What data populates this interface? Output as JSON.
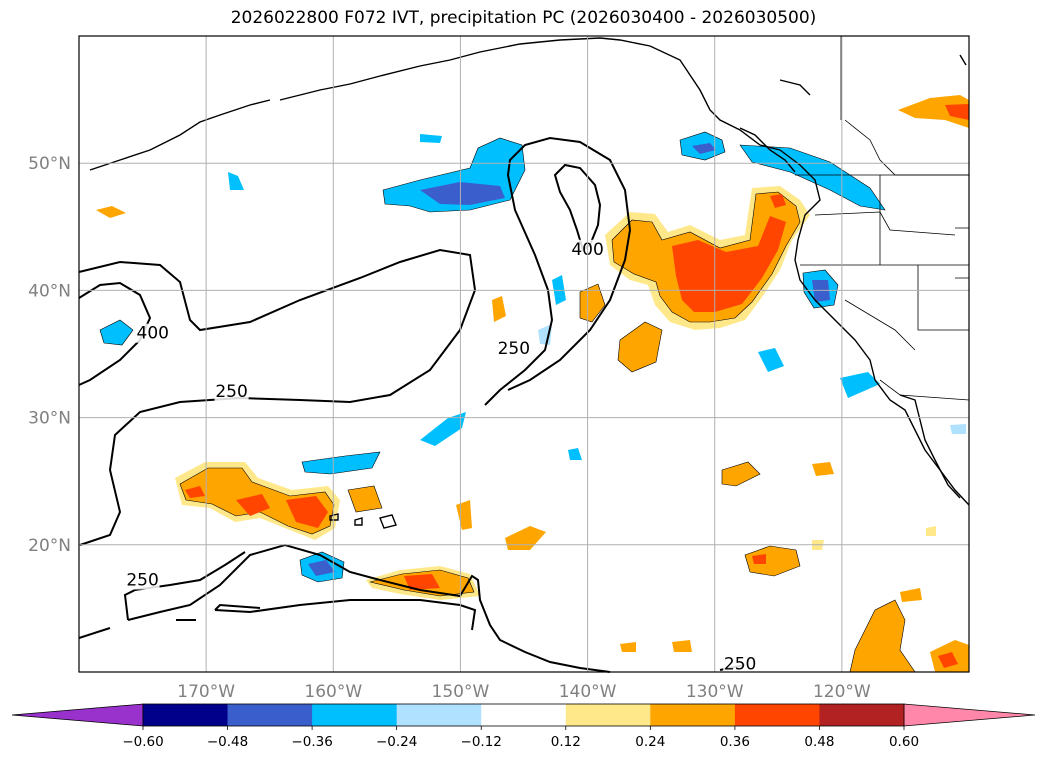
{
  "title": "2026022800 F072 IVT, precipitation PC (2026030400 - 2026030500)",
  "map": {
    "projection": "plate-carree",
    "lon_range": [
      -180,
      -110
    ],
    "lat_range": [
      10,
      60
    ],
    "grid": true,
    "lon_ticks": [
      {
        "lon": -170,
        "label": "170°W"
      },
      {
        "lon": -160,
        "label": "160°W"
      },
      {
        "lon": -150,
        "label": "150°W"
      },
      {
        "lon": -140,
        "label": "140°W"
      },
      {
        "lon": -130,
        "label": "130°W"
      },
      {
        "lon": -120,
        "label": "120°W"
      }
    ],
    "lat_ticks": [
      {
        "lat": 20,
        "label": "20°N"
      },
      {
        "lat": 30,
        "label": "30°N"
      },
      {
        "lat": 40,
        "label": "40°N"
      },
      {
        "lat": 50,
        "label": "50°N"
      }
    ],
    "ivt_contour_labels": [
      {
        "text": "400",
        "lon": -174.2,
        "lat": 36.2
      },
      {
        "text": "250",
        "lon": -168.0,
        "lat": 31.6
      },
      {
        "text": "250",
        "lon": -175.0,
        "lat": 16.8
      },
      {
        "text": "400",
        "lon": -140.0,
        "lat": 42.8
      },
      {
        "text": "250",
        "lon": -145.8,
        "lat": 35.0
      },
      {
        "text": "250",
        "lon": -128.0,
        "lat": 10.2
      }
    ]
  },
  "colorbar": {
    "boundaries": [
      -0.72,
      -0.6,
      -0.48,
      -0.36,
      -0.24,
      -0.12,
      0.12,
      0.24,
      0.36,
      0.48,
      0.6,
      0.72
    ],
    "tick_labels": [
      "−0.60",
      "−0.48",
      "−0.36",
      "−0.24",
      "−0.12",
      "0.12",
      "0.24",
      "0.36",
      "0.48",
      "0.60"
    ],
    "under_color": "#9932cc",
    "over_color": "#ff88aa",
    "colors": [
      "#00008b",
      "#3a5fcd",
      "#00bfff",
      "#b0e2ff",
      "#ffffff",
      "#ffe88a",
      "#ffa500",
      "#ff4500",
      "#b22222"
    ]
  },
  "colors": {
    "land_outline": "#000000",
    "grid": "#b0b0b0",
    "ivt_contour": "#000000"
  }
}
